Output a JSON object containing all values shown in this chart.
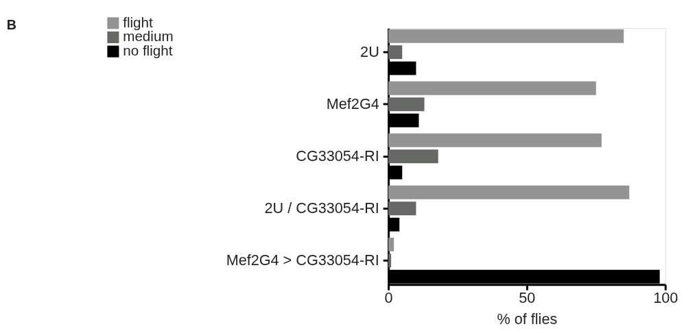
{
  "chart_data": {
    "type": "bar",
    "orientation": "horizontal",
    "xlabel": "% of flies",
    "annotations": [
      "B"
    ],
    "categories": [
      "2U",
      "Mef2G4",
      "CG33054-RI",
      "2U / CG33054-RI",
      "Mef2G4 > CG33054-RI"
    ],
    "series": [
      {
        "name": "flight",
        "color": "#939393",
        "values": [
          85,
          75,
          77,
          87,
          2
        ]
      },
      {
        "name": "medium",
        "color": "#666866",
        "values": [
          5,
          13,
          18,
          10,
          1
        ]
      },
      {
        "name": "no flight",
        "color": "#000000",
        "values": [
          10,
          11,
          5,
          4,
          98
        ]
      }
    ],
    "xlim": [
      0,
      100
    ],
    "xticks": [
      0,
      50,
      100
    ],
    "grid": false,
    "legend": "top left"
  }
}
